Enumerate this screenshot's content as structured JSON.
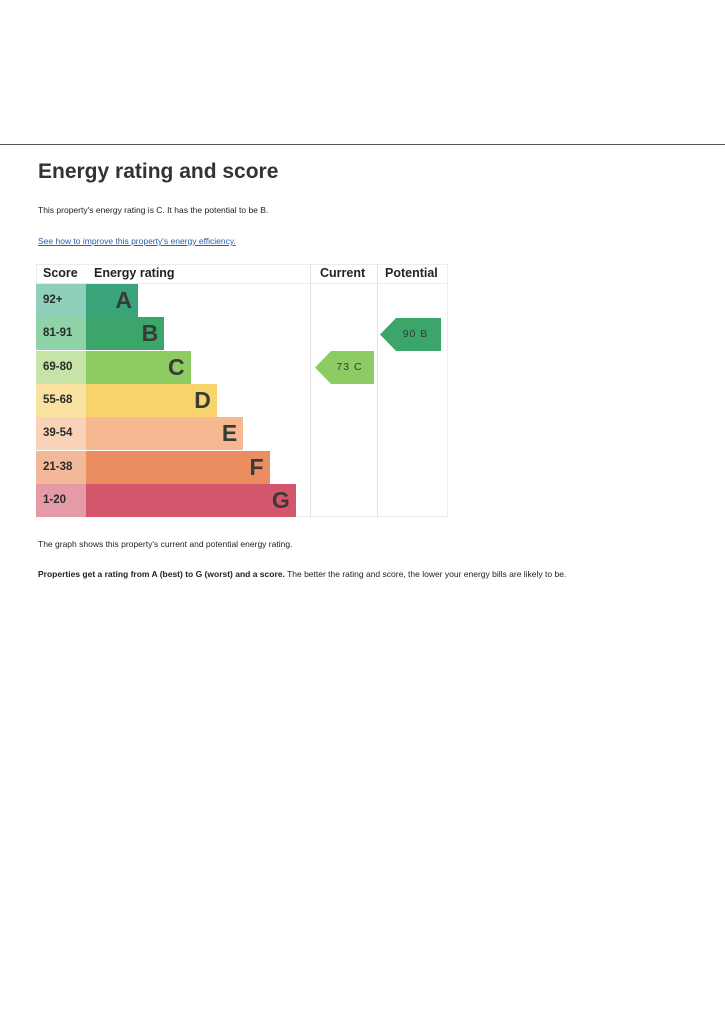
{
  "heading": "Energy rating and score",
  "intro": "This property's energy rating is C. It has the potential to be B.",
  "improve_link": "See how to improve this property's energy efficiency.",
  "chart": {
    "headers": {
      "score": "Score",
      "rating": "Energy rating",
      "current": "Current",
      "potential": "Potential"
    },
    "bands": [
      {
        "score": "92+",
        "letter": "A",
        "color": "#3aa37a",
        "score_bg": "#8fd0bb"
      },
      {
        "score": "81-91",
        "letter": "B",
        "color": "#3ba56a",
        "score_bg": "#8fd2a8"
      },
      {
        "score": "69-80",
        "letter": "C",
        "color": "#8ccc62",
        "score_bg": "#c6e4a8"
      },
      {
        "score": "55-68",
        "letter": "D",
        "color": "#f8d46c",
        "score_bg": "#fae3a0"
      },
      {
        "score": "39-54",
        "letter": "E",
        "color": "#f6b890",
        "score_bg": "#f9d3b8"
      },
      {
        "score": "21-38",
        "letter": "F",
        "color": "#ea8e62",
        "score_bg": "#f3b898"
      },
      {
        "score": "1-20",
        "letter": "G",
        "color": "#d4566c",
        "score_bg": "#e59aa8"
      }
    ],
    "current": {
      "value": "73",
      "letter": "C",
      "band": "C",
      "color": "#8ccc62"
    },
    "potential": {
      "value": "90",
      "letter": "B",
      "band": "B",
      "color": "#3ba56a"
    }
  },
  "caption": "The graph shows this property's current and potential energy rating.",
  "note_bold": "Properties get a rating from A (best) to G (worst) and a score.",
  "note_rest": " The better the rating and score, the lower your energy bills are likely to be."
}
